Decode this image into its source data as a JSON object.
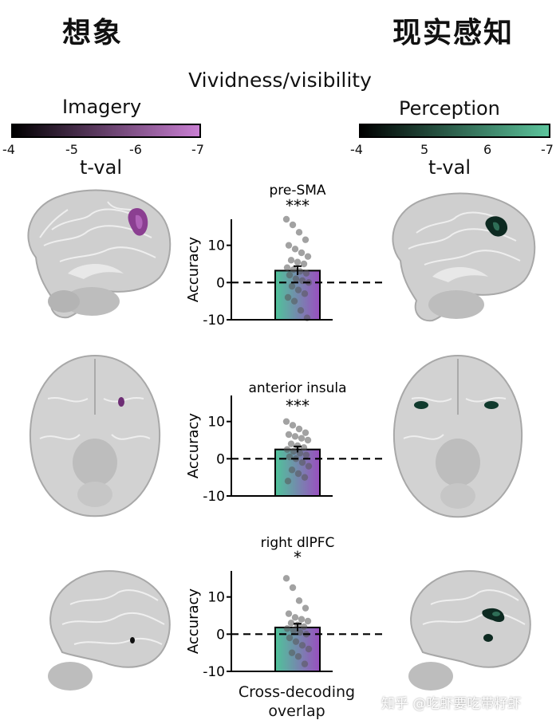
{
  "headers": {
    "left": "想象",
    "right": "现实感知"
  },
  "main_title": "Vividness/visibility",
  "colorbars": {
    "imagery": {
      "title": "Imagery",
      "ticks": [
        "-4",
        "-5",
        "-6",
        "-7"
      ],
      "unit": "t-val",
      "color_start": "#000000",
      "color_end": "#c97fd3"
    },
    "perception": {
      "title": "Perception",
      "ticks": [
        "-4",
        "5",
        "6",
        "-7"
      ],
      "unit": "t-val",
      "color_start": "#000000",
      "color_end": "#5cc49c"
    }
  },
  "chart_data": [
    {
      "type": "bar",
      "title": "pre-SMA",
      "ylabel": "Accuracy",
      "ylim": [
        -10,
        17
      ],
      "yticks": [
        -10,
        0,
        10
      ],
      "value": 3.2,
      "error": 1.2,
      "significance": "***",
      "points": [
        17,
        15.5,
        13.5,
        11.5,
        10,
        9,
        8,
        7,
        6,
        5.5,
        5,
        4,
        3.5,
        3,
        2.5,
        2,
        1,
        0.5,
        0,
        -1,
        -2,
        -3,
        -4,
        -5,
        -7.5,
        -9.5
      ]
    },
    {
      "type": "bar",
      "title": "anterior insula",
      "ylabel": "Accuracy",
      "ylim": [
        -10,
        17
      ],
      "yticks": [
        -10,
        0,
        10
      ],
      "value": 2.5,
      "error": 0.8,
      "significance": "***",
      "points": [
        10,
        9,
        8,
        7,
        6.5,
        6,
        5.5,
        5,
        4,
        3.5,
        3,
        2.5,
        2,
        1.5,
        1,
        0.5,
        0,
        -1,
        -2,
        -3,
        -4,
        -5,
        -6
      ]
    },
    {
      "type": "bar",
      "title": "right dlPFC",
      "ylabel": "Accuracy",
      "ylim": [
        -10,
        17
      ],
      "yticks": [
        -10,
        0,
        10
      ],
      "value": 1.8,
      "error": 1.0,
      "significance": "*",
      "points": [
        15,
        12.5,
        9,
        7,
        5.5,
        4.5,
        4,
        3.5,
        3,
        2.5,
        2,
        1.5,
        1,
        0.5,
        0,
        -1,
        -2,
        -3,
        -4,
        -5,
        -6,
        -8
      ]
    }
  ],
  "bar_colors": {
    "left": "#4fc49a",
    "right": "#9a4fc0"
  },
  "xlabel": {
    "line1": "Cross-decoding",
    "line2": "overlap"
  },
  "watermark": "知乎 @吃虾要吃带籽虾"
}
